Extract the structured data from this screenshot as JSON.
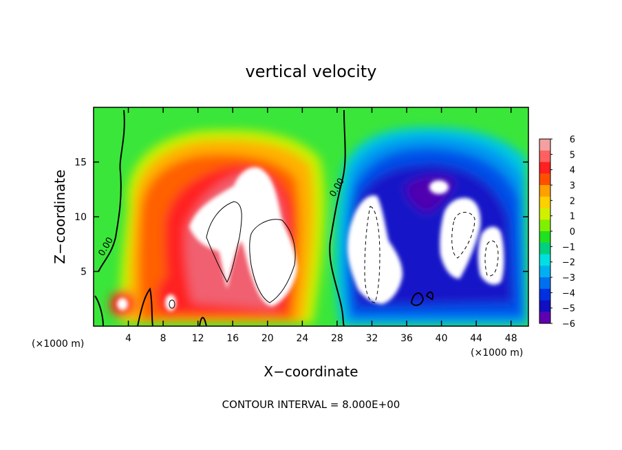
{
  "chart_data": {
    "type": "heatmap",
    "title": "vertical velocity",
    "xlabel": "X−coordinate",
    "ylabel": "Z−coordinate",
    "x_unit": "(×1000 m)",
    "z_unit": "(×1000 m)",
    "xlim": [
      0,
      50
    ],
    "ylim": [
      0,
      20
    ],
    "x_ticks": [
      4,
      8,
      12,
      16,
      20,
      24,
      28,
      32,
      36,
      40,
      44,
      48
    ],
    "y_ticks": [
      5,
      10,
      15
    ],
    "footer": "CONTOUR INTERVAL = 8.000E+00",
    "contour_labels": [
      "0.00",
      "0.00"
    ],
    "colorbar": {
      "ticks": [
        "6",
        "5",
        "4",
        "3",
        "2",
        "1",
        "0",
        "−1",
        "−2",
        "−3",
        "−4",
        "−5",
        "−6"
      ],
      "colors": [
        "#f4a0a0",
        "#ff6060",
        "#ff2020",
        "#ff5000",
        "#ffa000",
        "#ffd000",
        "#d0f000",
        "#80f000",
        "#20e020",
        "#00d080",
        "#00e0e0",
        "#00b0f0",
        "#0070f0",
        "#0030e0",
        "#1010c0",
        "#6000b0"
      ]
    },
    "features": [
      {
        "name": "updraft-core",
        "x": 18,
        "z": 9,
        "value": "> 6"
      },
      {
        "name": "updraft-right-lobe",
        "x": 20,
        "z": 6,
        "value": "> 6"
      },
      {
        "name": "downdraft-core",
        "x": 32,
        "z": 7,
        "value": "< -6"
      },
      {
        "name": "downdraft-east",
        "x": 43,
        "z": 8,
        "value": "< -6"
      },
      {
        "name": "downdraft-far-east",
        "x": 46,
        "z": 6,
        "value": "< -6"
      }
    ]
  }
}
